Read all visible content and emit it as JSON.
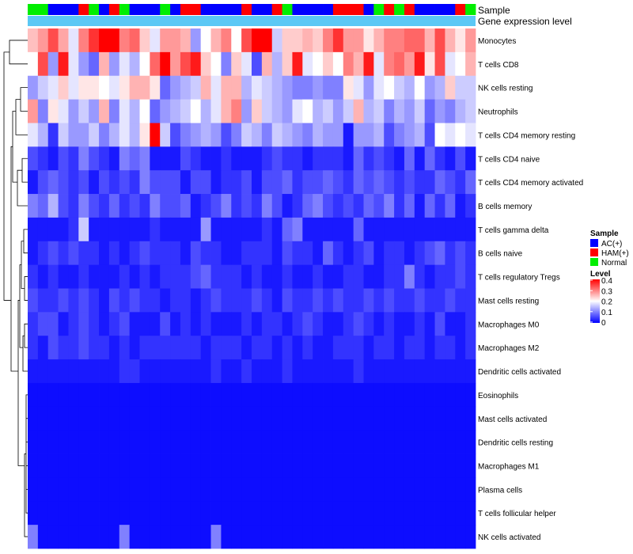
{
  "chart_data": {
    "type": "heatmap",
    "annotation_labels": [
      "Sample",
      "Gene expression level"
    ],
    "row_labels": [
      "Monocytes",
      "T cells CD8",
      "NK cells resting",
      "Neutrophils",
      "T cells CD4 memory resting",
      "T cells CD4 naive",
      "T cells CD4 memory activated",
      "B cells memory",
      "T cells gamma delta",
      "B cells naive",
      "T cells regulatory  Tregs",
      "Mast cells resting",
      "Macrophages M0",
      "Macrophages M2",
      "Dendritic cells activated",
      "Eosinophils",
      "Mast cells activated",
      "Dendritic cells resting",
      "Macrophages M1",
      "Plasma cells",
      "T cells follicular helper",
      "NK cells activated"
    ],
    "sample_groups": [
      "Normal",
      "Normal",
      "AC",
      "AC",
      "AC",
      "HAM",
      "Normal",
      "AC",
      "HAM",
      "Normal",
      "AC",
      "AC",
      "AC",
      "Normal",
      "AC",
      "HAM",
      "HAM",
      "AC",
      "AC",
      "AC",
      "AC",
      "HAM",
      "AC",
      "AC",
      "HAM",
      "Normal",
      "AC",
      "AC",
      "AC",
      "AC",
      "HAM",
      "HAM",
      "HAM",
      "AC",
      "Normal",
      "HAM",
      "Normal",
      "HAM",
      "AC",
      "AC",
      "AC",
      "AC",
      "HAM",
      "Normal"
    ],
    "values": [
      [
        0.25,
        0.28,
        0.34,
        0.27,
        0.18,
        0.3,
        0.36,
        0.4,
        0.4,
        0.3,
        0.32,
        0.24,
        0.18,
        0.28,
        0.28,
        0.26,
        0.12,
        0.2,
        0.26,
        0.3,
        0.2,
        0.34,
        0.4,
        0.4,
        0.16,
        0.24,
        0.24,
        0.26,
        0.24,
        0.3,
        0.36,
        0.28,
        0.28,
        0.22,
        0.26,
        0.3,
        0.3,
        0.32,
        0.32,
        0.26,
        0.34,
        0.26,
        0.22,
        0.28
      ],
      [
        0.2,
        0.34,
        0.12,
        0.38,
        0.18,
        0.12,
        0.08,
        0.26,
        0.12,
        0.18,
        0.14,
        0.2,
        0.32,
        0.4,
        0.28,
        0.34,
        0.38,
        0.24,
        0.2,
        0.1,
        0.24,
        0.18,
        0.06,
        0.26,
        0.14,
        0.24,
        0.38,
        0.18,
        0.2,
        0.24,
        0.2,
        0.3,
        0.26,
        0.38,
        0.18,
        0.3,
        0.32,
        0.28,
        0.38,
        0.22,
        0.34,
        0.18,
        0.2,
        0.26
      ],
      [
        0.12,
        0.16,
        0.18,
        0.24,
        0.18,
        0.22,
        0.22,
        0.2,
        0.18,
        0.22,
        0.26,
        0.26,
        0.22,
        0.08,
        0.12,
        0.14,
        0.16,
        0.26,
        0.18,
        0.26,
        0.26,
        0.14,
        0.18,
        0.16,
        0.14,
        0.12,
        0.1,
        0.1,
        0.12,
        0.1,
        0.1,
        0.22,
        0.18,
        0.12,
        0.18,
        0.2,
        0.16,
        0.14,
        0.2,
        0.12,
        0.14,
        0.24,
        0.16,
        0.16
      ],
      [
        0.28,
        0.1,
        0.22,
        0.18,
        0.12,
        0.16,
        0.12,
        0.26,
        0.1,
        0.18,
        0.14,
        0.2,
        0.08,
        0.12,
        0.14,
        0.16,
        0.2,
        0.14,
        0.18,
        0.26,
        0.3,
        0.12,
        0.24,
        0.16,
        0.14,
        0.12,
        0.18,
        0.2,
        0.14,
        0.16,
        0.12,
        0.16,
        0.26,
        0.14,
        0.16,
        0.1,
        0.14,
        0.12,
        0.16,
        0.08,
        0.12,
        0.1,
        0.14,
        0.16
      ],
      [
        0.18,
        0.14,
        0.04,
        0.16,
        0.12,
        0.12,
        0.16,
        0.1,
        0.14,
        0.18,
        0.14,
        0.22,
        0.4,
        0.16,
        0.06,
        0.1,
        0.12,
        0.14,
        0.12,
        0.06,
        0.1,
        0.16,
        0.14,
        0.1,
        0.16,
        0.14,
        0.12,
        0.1,
        0.14,
        0.12,
        0.12,
        0.02,
        0.12,
        0.12,
        0.14,
        0.06,
        0.1,
        0.12,
        0.14,
        0.06,
        0.2,
        0.18,
        0.2,
        0.18
      ],
      [
        0.06,
        0.04,
        0.02,
        0.06,
        0.04,
        0.1,
        0.06,
        0.04,
        0.02,
        0.1,
        0.08,
        0.1,
        0.02,
        0.02,
        0.02,
        0.06,
        0.04,
        0.02,
        0.02,
        0.04,
        0.02,
        0.02,
        0.02,
        0.04,
        0.06,
        0.04,
        0.04,
        0.02,
        0.04,
        0.04,
        0.04,
        0.02,
        0.08,
        0.04,
        0.06,
        0.04,
        0.02,
        0.08,
        0.02,
        0.08,
        0.04,
        0.02,
        0.06,
        0.02
      ],
      [
        0.02,
        0.06,
        0.08,
        0.06,
        0.04,
        0.06,
        0.02,
        0.06,
        0.04,
        0.06,
        0.04,
        0.1,
        0.06,
        0.06,
        0.06,
        0.02,
        0.06,
        0.06,
        0.02,
        0.04,
        0.04,
        0.06,
        0.02,
        0.06,
        0.06,
        0.08,
        0.04,
        0.06,
        0.06,
        0.08,
        0.06,
        0.04,
        0.08,
        0.06,
        0.08,
        0.06,
        0.04,
        0.06,
        0.04,
        0.04,
        0.08,
        0.06,
        0.04,
        0.08
      ],
      [
        0.1,
        0.08,
        0.14,
        0.06,
        0.04,
        0.1,
        0.06,
        0.04,
        0.08,
        0.04,
        0.06,
        0.04,
        0.1,
        0.06,
        0.06,
        0.08,
        0.02,
        0.04,
        0.06,
        0.1,
        0.04,
        0.06,
        0.04,
        0.1,
        0.06,
        0.02,
        0.04,
        0.08,
        0.1,
        0.06,
        0.04,
        0.06,
        0.04,
        0.08,
        0.06,
        0.1,
        0.04,
        0.08,
        0.02,
        0.08,
        0.04,
        0.08,
        0.02,
        0.04
      ],
      [
        0.02,
        0.02,
        0.02,
        0.02,
        0.04,
        0.16,
        0.02,
        0.02,
        0.02,
        0.02,
        0.02,
        0.02,
        0.04,
        0.02,
        0.02,
        0.02,
        0.02,
        0.12,
        0.02,
        0.02,
        0.02,
        0.02,
        0.02,
        0.04,
        0.02,
        0.08,
        0.1,
        0.02,
        0.02,
        0.02,
        0.02,
        0.02,
        0.08,
        0.02,
        0.02,
        0.02,
        0.02,
        0.02,
        0.02,
        0.02,
        0.02,
        0.02,
        0.02,
        0.02
      ],
      [
        0.02,
        0.04,
        0.06,
        0.04,
        0.06,
        0.04,
        0.04,
        0.02,
        0.04,
        0.02,
        0.04,
        0.06,
        0.04,
        0.04,
        0.04,
        0.02,
        0.06,
        0.04,
        0.04,
        0.02,
        0.02,
        0.04,
        0.04,
        0.04,
        0.02,
        0.06,
        0.04,
        0.04,
        0.02,
        0.08,
        0.04,
        0.02,
        0.04,
        0.06,
        0.02,
        0.04,
        0.04,
        0.02,
        0.04,
        0.06,
        0.08,
        0.04,
        0.06,
        0.04
      ],
      [
        0.04,
        0.02,
        0.04,
        0.02,
        0.02,
        0.04,
        0.02,
        0.02,
        0.02,
        0.04,
        0.02,
        0.04,
        0.02,
        0.04,
        0.04,
        0.04,
        0.06,
        0.08,
        0.04,
        0.04,
        0.04,
        0.02,
        0.04,
        0.02,
        0.02,
        0.04,
        0.02,
        0.02,
        0.04,
        0.02,
        0.02,
        0.04,
        0.04,
        0.02,
        0.02,
        0.04,
        0.04,
        0.1,
        0.04,
        0.02,
        0.04,
        0.04,
        0.06,
        0.04
      ],
      [
        0.06,
        0.04,
        0.04,
        0.06,
        0.04,
        0.06,
        0.04,
        0.02,
        0.06,
        0.04,
        0.06,
        0.04,
        0.04,
        0.02,
        0.04,
        0.04,
        0.02,
        0.04,
        0.06,
        0.04,
        0.04,
        0.04,
        0.06,
        0.04,
        0.02,
        0.06,
        0.04,
        0.04,
        0.06,
        0.04,
        0.06,
        0.04,
        0.04,
        0.06,
        0.04,
        0.06,
        0.04,
        0.04,
        0.06,
        0.04,
        0.04,
        0.06,
        0.04,
        0.04
      ],
      [
        0.04,
        0.06,
        0.06,
        0.02,
        0.04,
        0.06,
        0.04,
        0.02,
        0.04,
        0.06,
        0.02,
        0.02,
        0.02,
        0.06,
        0.02,
        0.04,
        0.02,
        0.04,
        0.02,
        0.02,
        0.02,
        0.04,
        0.02,
        0.04,
        0.04,
        0.02,
        0.04,
        0.06,
        0.04,
        0.02,
        0.02,
        0.04,
        0.06,
        0.04,
        0.02,
        0.04,
        0.02,
        0.02,
        0.04,
        0.02,
        0.06,
        0.02,
        0.02,
        0.04
      ],
      [
        0.04,
        0.02,
        0.06,
        0.04,
        0.04,
        0.06,
        0.04,
        0.04,
        0.02,
        0.04,
        0.02,
        0.04,
        0.04,
        0.04,
        0.04,
        0.04,
        0.04,
        0.02,
        0.04,
        0.04,
        0.04,
        0.02,
        0.04,
        0.04,
        0.02,
        0.04,
        0.02,
        0.04,
        0.02,
        0.02,
        0.04,
        0.04,
        0.04,
        0.02,
        0.04,
        0.04,
        0.02,
        0.04,
        0.04,
        0.02,
        0.04,
        0.04,
        0.02,
        0.04
      ],
      [
        0.02,
        0.02,
        0.02,
        0.02,
        0.02,
        0.02,
        0.02,
        0.02,
        0.02,
        0.04,
        0.04,
        0.02,
        0.02,
        0.02,
        0.02,
        0.02,
        0.02,
        0.02,
        0.04,
        0.02,
        0.02,
        0.04,
        0.02,
        0.02,
        0.02,
        0.04,
        0.02,
        0.02,
        0.02,
        0.02,
        0.02,
        0.02,
        0.04,
        0.02,
        0.02,
        0.02,
        0.02,
        0.02,
        0.02,
        0.02,
        0.02,
        0.02,
        0.02,
        0.02
      ],
      [
        0.01,
        0.01,
        0.01,
        0.01,
        0.01,
        0.01,
        0.01,
        0.01,
        0.01,
        0.01,
        0.01,
        0.01,
        0.01,
        0.01,
        0.01,
        0.01,
        0.01,
        0.01,
        0.01,
        0.01,
        0.01,
        0.01,
        0.01,
        0.01,
        0.01,
        0.01,
        0.01,
        0.01,
        0.01,
        0.01,
        0.01,
        0.01,
        0.01,
        0.01,
        0.01,
        0.01,
        0.01,
        0.01,
        0.01,
        0.01,
        0.01,
        0.01,
        0.01,
        0.01
      ],
      [
        0.01,
        0.01,
        0.01,
        0.01,
        0.01,
        0.01,
        0.01,
        0.01,
        0.01,
        0.01,
        0.01,
        0.01,
        0.01,
        0.01,
        0.01,
        0.01,
        0.01,
        0.01,
        0.01,
        0.01,
        0.01,
        0.01,
        0.01,
        0.01,
        0.01,
        0.01,
        0.01,
        0.01,
        0.01,
        0.01,
        0.01,
        0.01,
        0.01,
        0.01,
        0.01,
        0.01,
        0.01,
        0.01,
        0.01,
        0.01,
        0.01,
        0.01,
        0.01,
        0.01
      ],
      [
        0.01,
        0.01,
        0.01,
        0.01,
        0.01,
        0.01,
        0.01,
        0.01,
        0.01,
        0.01,
        0.01,
        0.01,
        0.01,
        0.01,
        0.01,
        0.01,
        0.01,
        0.01,
        0.01,
        0.01,
        0.01,
        0.01,
        0.01,
        0.01,
        0.01,
        0.01,
        0.01,
        0.01,
        0.01,
        0.01,
        0.01,
        0.01,
        0.01,
        0.01,
        0.01,
        0.01,
        0.01,
        0.01,
        0.01,
        0.01,
        0.01,
        0.01,
        0.01,
        0.01
      ],
      [
        0.01,
        0.01,
        0.01,
        0.01,
        0.01,
        0.01,
        0.01,
        0.01,
        0.01,
        0.01,
        0.01,
        0.01,
        0.01,
        0.01,
        0.01,
        0.01,
        0.01,
        0.01,
        0.01,
        0.01,
        0.01,
        0.01,
        0.01,
        0.01,
        0.01,
        0.01,
        0.01,
        0.01,
        0.01,
        0.01,
        0.01,
        0.01,
        0.01,
        0.01,
        0.01,
        0.01,
        0.01,
        0.01,
        0.01,
        0.01,
        0.01,
        0.01,
        0.01,
        0.01
      ],
      [
        0.01,
        0.01,
        0.01,
        0.01,
        0.01,
        0.01,
        0.01,
        0.01,
        0.01,
        0.01,
        0.01,
        0.01,
        0.01,
        0.01,
        0.01,
        0.01,
        0.01,
        0.01,
        0.01,
        0.01,
        0.01,
        0.01,
        0.01,
        0.01,
        0.01,
        0.01,
        0.01,
        0.01,
        0.01,
        0.01,
        0.01,
        0.01,
        0.01,
        0.01,
        0.01,
        0.01,
        0.01,
        0.01,
        0.01,
        0.01,
        0.01,
        0.01,
        0.01,
        0.01
      ],
      [
        0.01,
        0.01,
        0.01,
        0.01,
        0.01,
        0.01,
        0.01,
        0.01,
        0.01,
        0.01,
        0.01,
        0.01,
        0.01,
        0.01,
        0.01,
        0.01,
        0.01,
        0.01,
        0.01,
        0.01,
        0.01,
        0.01,
        0.01,
        0.01,
        0.01,
        0.01,
        0.01,
        0.01,
        0.01,
        0.01,
        0.01,
        0.01,
        0.01,
        0.01,
        0.01,
        0.01,
        0.01,
        0.01,
        0.01,
        0.01,
        0.01,
        0.01,
        0.01,
        0.01
      ],
      [
        0.1,
        0.01,
        0.01,
        0.01,
        0.01,
        0.01,
        0.01,
        0.01,
        0.01,
        0.1,
        0.01,
        0.01,
        0.01,
        0.01,
        0.01,
        0.01,
        0.01,
        0.01,
        0.1,
        0.01,
        0.01,
        0.01,
        0.01,
        0.01,
        0.01,
        0.01,
        0.01,
        0.01,
        0.01,
        0.01,
        0.01,
        0.01,
        0.01,
        0.01,
        0.01,
        0.01,
        0.01,
        0.01,
        0.01,
        0.01,
        0.01,
        0.01,
        0.01,
        0.01
      ]
    ],
    "color_scale": {
      "low": "#0000ff",
      "mid": "#ffffff",
      "high": "#ff0000",
      "min": 0,
      "mid_value": 0.2,
      "max": 0.4
    },
    "legend": {
      "sample_title": "Sample",
      "sample_entries": [
        {
          "key": "AC",
          "label": "AC(+)",
          "color": "#0000ff"
        },
        {
          "key": "HAM",
          "label": "HAM(+)",
          "color": "#ff0000"
        },
        {
          "key": "Normal",
          "label": "Normal",
          "color": "#00ee00"
        }
      ],
      "level_title": "Level",
      "level_ticks": [
        "0.4",
        "0.3",
        "0.2",
        "0.1",
        "0"
      ],
      "placement": "right"
    },
    "gene_expression_bar_color": "#5bc8f5"
  }
}
